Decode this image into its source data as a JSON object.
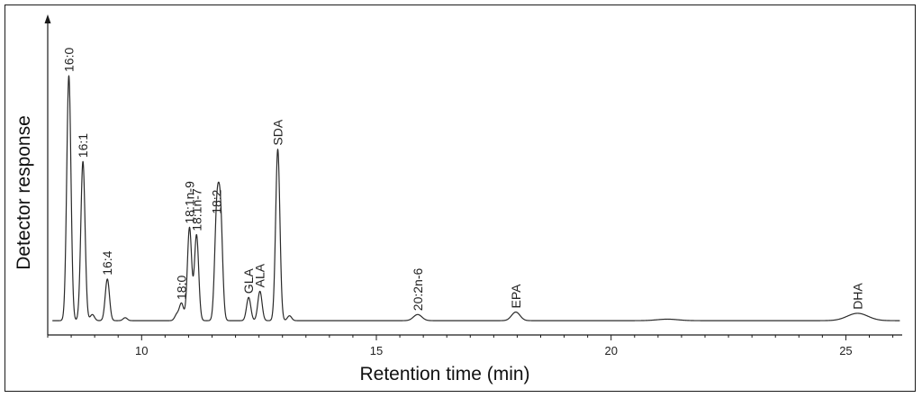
{
  "chart_data": {
    "type": "line",
    "title": "",
    "xlabel": "Retention time (min)",
    "ylabel": "Detector response",
    "xlim": [
      8,
      26.2
    ],
    "ylim": [
      0,
      100
    ],
    "x_ticks": [
      10,
      15,
      20,
      25
    ],
    "x_minor_step": 0.5,
    "grid": false,
    "baseline": 0.7,
    "series": [
      {
        "peaks": [
          {
            "x": 8.45,
            "y": 100,
            "label": "16:0"
          },
          {
            "x": 8.75,
            "y": 65,
            "label": "16:1"
          },
          {
            "x": 8.95,
            "y": 2.5,
            "label": ""
          },
          {
            "x": 9.27,
            "y": 17,
            "label": "16:4"
          },
          {
            "x": 9.65,
            "y": 1.2,
            "label": ""
          },
          {
            "x": 10.75,
            "y": 2.5,
            "label": ""
          },
          {
            "x": 10.85,
            "y": 7,
            "label": "18:0"
          },
          {
            "x": 11.02,
            "y": 38,
            "label": "18:1n-9"
          },
          {
            "x": 11.17,
            "y": 35,
            "label": "18:1n-7"
          },
          {
            "x": 11.6,
            "y": 42,
            "label": "18:2"
          },
          {
            "x": 11.68,
            "y": 42,
            "label": ""
          },
          {
            "x": 12.28,
            "y": 9.5,
            "label": "GLA"
          },
          {
            "x": 12.52,
            "y": 12,
            "label": "ALA"
          },
          {
            "x": 12.9,
            "y": 70,
            "label": "SDA"
          },
          {
            "x": 13.15,
            "y": 2,
            "label": ""
          },
          {
            "x": 15.88,
            "y": 2.5,
            "label": "20:2n-6"
          },
          {
            "x": 17.97,
            "y": 3.5,
            "label": "EPA"
          },
          {
            "x": 21.2,
            "y": 0.6,
            "label": ""
          },
          {
            "x": 25.25,
            "y": 3,
            "label": "DHA"
          }
        ]
      }
    ]
  }
}
